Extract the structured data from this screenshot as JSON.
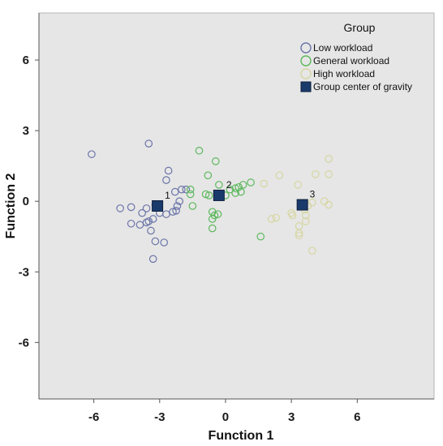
{
  "chart_data": {
    "type": "scatter",
    "xlabel": "Function 1",
    "ylabel": "Function 2",
    "xlim": [
      -8.5,
      9.5
    ],
    "ylim": [
      -8.4,
      8.0
    ],
    "x_ticks": [
      -6,
      -3,
      0,
      3,
      6
    ],
    "y_ticks": [
      6,
      3,
      0,
      -3,
      -6
    ],
    "x_tick_labels": [
      "-6",
      "-3",
      "0",
      "3",
      "6"
    ],
    "y_tick_labels": [
      "6",
      "3",
      "0",
      "-3",
      "-6"
    ],
    "grid": false,
    "background_color": "#e6e6e6",
    "legend": {
      "title": "Group",
      "position": "top-right",
      "entries": [
        {
          "label": "Low workload",
          "marker": "circle",
          "color": "#6b75a8"
        },
        {
          "label": "General workload",
          "marker": "circle",
          "color": "#5cb85c"
        },
        {
          "label": "High workload",
          "marker": "circle",
          "color": "#d6d6a2"
        },
        {
          "label": "Group center of gravity",
          "marker": "square",
          "color": "#1a3a6b"
        }
      ]
    },
    "series": [
      {
        "name": "Low workload",
        "color": "#6b75a8",
        "points": [
          [
            -6.1,
            2.0
          ],
          [
            -3.5,
            2.45
          ],
          [
            -2.6,
            1.3
          ],
          [
            -2.7,
            0.9
          ],
          [
            -1.8,
            0.5
          ],
          [
            -2.0,
            0.5
          ],
          [
            -2.3,
            0.4
          ],
          [
            -2.1,
            0.0
          ],
          [
            -2.2,
            -0.2
          ],
          [
            -2.25,
            -0.4
          ],
          [
            -2.4,
            -0.45
          ],
          [
            -3.2,
            -0.15
          ],
          [
            -3.6,
            -0.3
          ],
          [
            -3.8,
            -0.5
          ],
          [
            -3.0,
            -0.5
          ],
          [
            -2.7,
            -0.55
          ],
          [
            -3.3,
            -0.75
          ],
          [
            -3.5,
            -0.85
          ],
          [
            -3.6,
            -0.9
          ],
          [
            -3.9,
            -1.0
          ],
          [
            -4.3,
            -0.25
          ],
          [
            -4.8,
            -0.3
          ],
          [
            -4.3,
            -0.95
          ],
          [
            -3.4,
            -1.25
          ],
          [
            -3.2,
            -1.7
          ],
          [
            -2.8,
            -1.75
          ],
          [
            -3.3,
            -2.45
          ]
        ]
      },
      {
        "name": "General workload",
        "color": "#5cb85c",
        "points": [
          [
            -1.2,
            2.15
          ],
          [
            -0.45,
            1.7
          ],
          [
            -0.8,
            1.1
          ],
          [
            -1.6,
            0.5
          ],
          [
            -1.6,
            0.3
          ],
          [
            -0.9,
            0.3
          ],
          [
            -0.75,
            0.25
          ],
          [
            -1.5,
            -0.2
          ],
          [
            -0.6,
            -0.45
          ],
          [
            -0.5,
            -0.6
          ],
          [
            -0.35,
            -0.55
          ],
          [
            -0.6,
            -0.75
          ],
          [
            -0.6,
            -1.15
          ],
          [
            -0.3,
            0.7
          ],
          [
            0.2,
            0.5
          ],
          [
            0.45,
            0.55
          ],
          [
            0.6,
            0.6
          ],
          [
            0.8,
            0.7
          ],
          [
            1.15,
            0.8
          ],
          [
            0.45,
            0.35
          ],
          [
            0.7,
            0.4
          ],
          [
            0.0,
            0.25
          ],
          [
            1.6,
            -1.5
          ]
        ]
      },
      {
        "name": "High workload",
        "color": "#d6d6a2",
        "points": [
          [
            1.75,
            0.75
          ],
          [
            2.45,
            1.1
          ],
          [
            4.7,
            1.8
          ],
          [
            4.1,
            1.15
          ],
          [
            4.7,
            1.15
          ],
          [
            3.3,
            0.7
          ],
          [
            4.5,
            0.0
          ],
          [
            4.7,
            -0.15
          ],
          [
            3.75,
            -0.2
          ],
          [
            3.6,
            -0.35
          ],
          [
            3.0,
            -0.5
          ],
          [
            3.05,
            -0.6
          ],
          [
            3.65,
            -0.6
          ],
          [
            3.65,
            -0.85
          ],
          [
            2.3,
            -0.7
          ],
          [
            2.1,
            -0.75
          ],
          [
            3.35,
            -1.05
          ],
          [
            3.35,
            -1.35
          ],
          [
            3.35,
            -1.45
          ],
          [
            3.95,
            -2.1
          ],
          [
            3.95,
            -0.05
          ]
        ]
      }
    ],
    "centroids": [
      {
        "label": "1",
        "x": -3.1,
        "y": -0.2
      },
      {
        "label": "2",
        "x": -0.3,
        "y": 0.25
      },
      {
        "label": "3",
        "x": 3.5,
        "y": -0.15
      }
    ]
  }
}
